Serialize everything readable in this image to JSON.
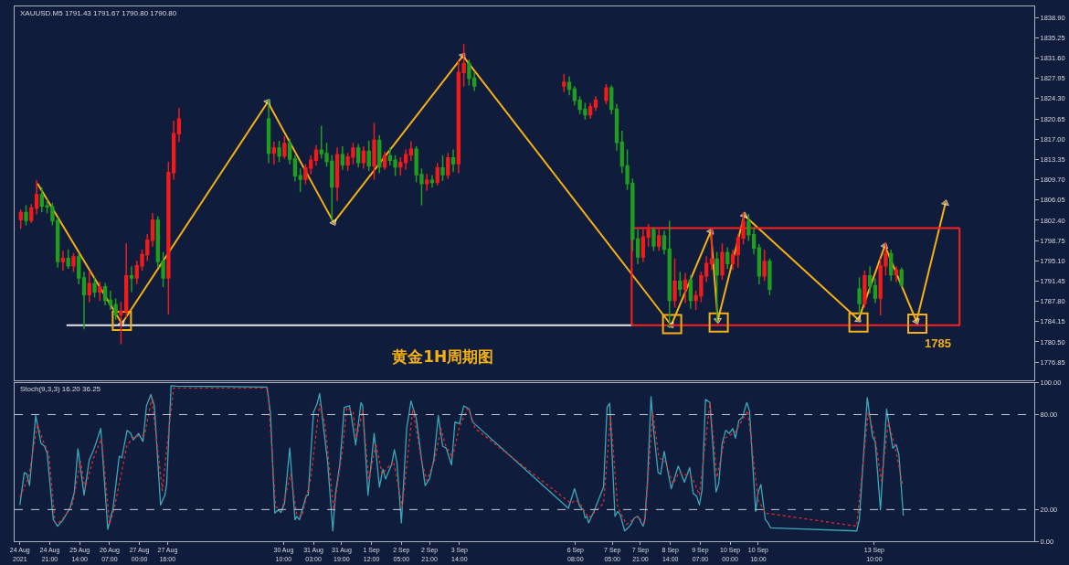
{
  "chart_data": [
    {
      "type": "candlestick",
      "title": "黄金1H周期图",
      "annotations": [
        "XAUUSD.M5 1791.43 1791.67 1790.80 1790.80",
        {
          "text": "1785",
          "x": "2021-09-14T10:30",
          "y": 1783.8
        }
      ],
      "x": [
        "2021-08-24T04:30",
        "2021-08-24T07:30",
        "2021-08-24T10:30",
        "2021-08-24T13:30",
        "2021-08-24T16:30",
        "2021-08-24T19:30",
        "2021-08-24T22:30",
        "2021-08-25T01:30",
        "2021-08-25T04:30",
        "2021-08-25T07:30",
        "2021-08-25T10:30",
        "2021-08-25T13:30",
        "2021-08-25T16:30",
        "2021-08-25T19:30",
        "2021-08-25T22:30",
        "2021-08-26T01:30",
        "2021-08-26T04:30",
        "2021-08-26T07:30",
        "2021-08-26T10:30",
        "2021-08-26T13:30",
        "2021-08-26T16:30",
        "2021-08-26T19:30",
        "2021-08-26T22:30",
        "2021-08-27T01:30",
        "2021-08-27T04:30",
        "2021-08-27T07:30",
        "2021-08-27T10:30",
        "2021-08-27T13:30",
        "2021-08-27T16:30",
        "2021-08-27T19:30",
        "2021-08-27T22:30",
        "2021-08-30T01:30",
        "2021-08-30T04:30",
        "2021-08-30T07:30",
        "2021-08-30T10:30",
        "2021-08-30T13:30",
        "2021-08-30T16:30",
        "2021-08-30T19:30",
        "2021-08-30T22:30",
        "2021-08-31T01:30",
        "2021-08-31T04:30",
        "2021-08-31T07:30",
        "2021-08-31T10:30",
        "2021-08-31T13:30",
        "2021-08-31T16:30",
        "2021-08-31T19:30",
        "2021-08-31T22:30",
        "2021-09-01T01:30",
        "2021-09-01T04:30",
        "2021-09-01T07:30",
        "2021-09-01T10:30",
        "2021-09-01T13:30",
        "2021-09-01T16:30",
        "2021-09-01T19:30",
        "2021-09-01T22:30",
        "2021-09-02T01:30",
        "2021-09-02T04:30",
        "2021-09-02T07:30",
        "2021-09-02T10:30",
        "2021-09-02T13:30",
        "2021-09-02T16:30",
        "2021-09-02T19:30",
        "2021-09-02T22:30",
        "2021-09-03T01:30",
        "2021-09-03T04:30",
        "2021-09-03T07:30",
        "2021-09-03T10:30",
        "2021-09-03T13:30",
        "2021-09-03T16:30",
        "2021-09-03T19:30",
        "2021-09-03T22:30",
        "2021-09-06T01:30",
        "2021-09-06T04:30",
        "2021-09-06T07:30",
        "2021-09-06T10:30",
        "2021-09-06T13:30",
        "2021-09-06T16:30",
        "2021-09-06T19:30",
        "2021-09-07T01:30",
        "2021-09-07T04:30",
        "2021-09-07T07:30",
        "2021-09-07T10:30",
        "2021-09-07T13:30",
        "2021-09-07T16:30",
        "2021-09-07T19:30",
        "2021-09-07T22:30",
        "2021-09-08T01:30",
        "2021-09-08T04:30",
        "2021-09-08T07:30",
        "2021-09-08T10:30",
        "2021-09-08T13:30",
        "2021-09-08T16:30",
        "2021-09-08T19:30",
        "2021-09-08T22:30",
        "2021-09-09T01:30",
        "2021-09-09T04:30",
        "2021-09-09T07:30",
        "2021-09-09T10:30",
        "2021-09-09T13:30",
        "2021-09-09T16:30",
        "2021-09-09T19:30",
        "2021-09-09T22:30",
        "2021-09-10T01:30",
        "2021-09-10T04:30",
        "2021-09-10T07:30",
        "2021-09-10T10:30",
        "2021-09-10T13:30",
        "2021-09-10T16:30",
        "2021-09-10T19:30",
        "2021-09-10T22:30",
        "2021-09-13T01:30",
        "2021-09-13T04:30",
        "2021-09-13T07:30",
        "2021-09-13T10:30",
        "2021-09-13T13:30",
        "2021-09-13T16:30",
        "2021-09-13T19:30",
        "2021-09-13T22:30",
        "2021-09-14T01:30"
      ],
      "ohlc": [
        [
          1802.5,
          1804.2,
          1801.0,
          1803.8
        ],
        [
          1803.8,
          1805.0,
          1801.6,
          1802.4
        ],
        [
          1802.4,
          1805.2,
          1802.0,
          1804.6
        ],
        [
          1804.6,
          1809.5,
          1803.6,
          1807.0
        ],
        [
          1807.0,
          1808.2,
          1804.0,
          1805.0
        ],
        [
          1805.0,
          1806.0,
          1803.8,
          1804.8
        ],
        [
          1804.8,
          1805.4,
          1801.6,
          1802.3
        ],
        [
          1802.3,
          1802.8,
          1794.0,
          1795.0
        ],
        [
          1795.0,
          1796.8,
          1793.5,
          1795.5
        ],
        [
          1795.5,
          1797.0,
          1793.8,
          1794.2
        ],
        [
          1794.2,
          1796.4,
          1793.2,
          1795.8
        ],
        [
          1795.8,
          1796.3,
          1791.0,
          1792.0
        ],
        [
          1792.0,
          1793.0,
          1782.9,
          1789.0
        ],
        [
          1789.0,
          1793.2,
          1787.8,
          1791.0
        ],
        [
          1791.0,
          1792.0,
          1788.6,
          1789.5
        ],
        [
          1789.5,
          1791.2,
          1788.0,
          1790.4
        ],
        [
          1790.4,
          1791.0,
          1787.2,
          1788.0
        ],
        [
          1788.0,
          1789.6,
          1786.4,
          1787.2
        ],
        [
          1787.2,
          1788.2,
          1784.6,
          1785.4
        ],
        [
          1785.4,
          1787.6,
          1780.2,
          1786.0
        ],
        [
          1786.0,
          1798.1,
          1785.0,
          1792.4
        ],
        [
          1792.4,
          1794.0,
          1789.6,
          1792.0
        ],
        [
          1792.0,
          1795.0,
          1791.0,
          1794.2
        ],
        [
          1794.2,
          1797.0,
          1793.4,
          1796.2
        ],
        [
          1796.2,
          1799.8,
          1795.2,
          1798.8
        ],
        [
          1798.8,
          1803.6,
          1797.8,
          1802.4
        ],
        [
          1802.4,
          1803.0,
          1794.0,
          1795.0
        ],
        [
          1795.0,
          1796.6,
          1790.5,
          1792.0
        ],
        [
          1792.0,
          1812.8,
          1785.6,
          1811.0
        ],
        [
          1811.0,
          1820.2,
          1809.8,
          1818.0
        ],
        [
          1818.0,
          1822.5,
          1816.6,
          1820.6
        ],
        [
          1820.6,
          1824.1,
          1812.8,
          1814.5
        ],
        [
          1814.5,
          1816.4,
          1812.6,
          1815.4
        ],
        [
          1815.4,
          1816.6,
          1813.0,
          1814.0
        ],
        [
          1814.0,
          1817.4,
          1813.6,
          1816.2
        ],
        [
          1816.2,
          1817.0,
          1812.6,
          1813.4
        ],
        [
          1813.4,
          1814.0,
          1809.5,
          1810.4
        ],
        [
          1810.4,
          1811.6,
          1807.6,
          1809.8
        ],
        [
          1809.8,
          1812.4,
          1809.0,
          1811.8
        ],
        [
          1811.8,
          1814.0,
          1810.8,
          1813.2
        ],
        [
          1813.2,
          1815.8,
          1812.4,
          1815.0
        ],
        [
          1815.0,
          1819.3,
          1813.6,
          1814.4
        ],
        [
          1814.4,
          1816.2,
          1812.2,
          1813.0
        ],
        [
          1813.0,
          1814.0,
          1802.4,
          1808.4
        ],
        [
          1808.4,
          1815.4,
          1806.0,
          1814.2
        ],
        [
          1814.2,
          1815.6,
          1811.6,
          1812.4
        ],
        [
          1812.4,
          1814.4,
          1811.4,
          1813.8
        ],
        [
          1813.8,
          1816.2,
          1812.6,
          1815.4
        ],
        [
          1815.4,
          1816.0,
          1812.0,
          1812.8
        ],
        [
          1812.8,
          1815.6,
          1811.8,
          1814.8
        ],
        [
          1814.8,
          1816.6,
          1811.4,
          1812.2
        ],
        [
          1812.2,
          1819.8,
          1809.8,
          1816.8
        ],
        [
          1816.8,
          1817.6,
          1811.0,
          1812.0
        ],
        [
          1812.0,
          1814.6,
          1811.6,
          1814.0
        ],
        [
          1814.0,
          1815.4,
          1812.4,
          1813.2
        ],
        [
          1813.2,
          1814.0,
          1810.5,
          1812.0
        ],
        [
          1812.0,
          1813.6,
          1810.6,
          1812.8
        ],
        [
          1812.8,
          1815.0,
          1811.6,
          1814.2
        ],
        [
          1814.2,
          1816.5,
          1813.2,
          1815.2
        ],
        [
          1815.2,
          1815.6,
          1809.4,
          1810.6
        ],
        [
          1810.6,
          1811.6,
          1805.2,
          1809.0
        ],
        [
          1809.0,
          1810.6,
          1807.8,
          1809.6
        ],
        [
          1809.6,
          1810.4,
          1808.4,
          1809.2
        ],
        [
          1809.2,
          1812.6,
          1808.8,
          1811.8
        ],
        [
          1811.8,
          1814.0,
          1809.6,
          1810.6
        ],
        [
          1810.6,
          1814.4,
          1810.0,
          1813.6
        ],
        [
          1813.6,
          1815.0,
          1811.2,
          1812.6
        ],
        [
          1812.6,
          1831.0,
          1811.0,
          1829.0
        ],
        [
          1829.0,
          1834.0,
          1826.6,
          1830.6
        ],
        [
          1830.6,
          1831.2,
          1826.8,
          1828.0
        ],
        [
          1828.0,
          1829.0,
          1825.8,
          1826.6
        ],
        [
          1826.6,
          1828.6,
          1825.6,
          1827.2
        ],
        [
          1827.2,
          1828.2,
          1825.0,
          1826.0
        ],
        [
          1826.0,
          1826.4,
          1823.2,
          1824.0
        ],
        [
          1824.0,
          1824.6,
          1821.6,
          1822.4
        ],
        [
          1822.4,
          1823.4,
          1820.6,
          1821.4
        ],
        [
          1821.4,
          1823.4,
          1820.8,
          1822.8
        ],
        [
          1822.8,
          1824.6,
          1822.2,
          1824.0
        ],
        [
          1824.0,
          1826.8,
          1823.4,
          1826.2
        ],
        [
          1826.2,
          1826.6,
          1821.6,
          1822.4
        ],
        [
          1822.4,
          1823.2,
          1815.0,
          1816.4
        ],
        [
          1816.4,
          1818.4,
          1811.0,
          1812.2
        ],
        [
          1812.2,
          1815.0,
          1808.0,
          1809.0
        ],
        [
          1809.0,
          1809.8,
          1797.0,
          1799.0
        ],
        [
          1799.0,
          1800.6,
          1794.6,
          1795.8
        ],
        [
          1795.8,
          1800.6,
          1795.0,
          1799.4
        ],
        [
          1799.4,
          1801.6,
          1797.8,
          1800.6
        ],
        [
          1800.6,
          1801.0,
          1797.0,
          1797.8
        ],
        [
          1797.8,
          1800.6,
          1797.0,
          1799.6
        ],
        [
          1799.6,
          1800.4,
          1796.4,
          1797.2
        ],
        [
          1797.2,
          1802.2,
          1783.1,
          1788.0
        ],
        [
          1788.0,
          1795.4,
          1786.8,
          1791.4
        ],
        [
          1791.4,
          1793.0,
          1788.8,
          1790.0
        ],
        [
          1790.0,
          1792.8,
          1787.6,
          1791.6
        ],
        [
          1791.6,
          1792.4,
          1786.6,
          1788.0
        ],
        [
          1788.0,
          1789.6,
          1786.4,
          1788.8
        ],
        [
          1788.8,
          1793.0,
          1787.8,
          1792.4
        ],
        [
          1792.4,
          1795.8,
          1791.4,
          1794.6
        ],
        [
          1794.6,
          1800.8,
          1793.6,
          1795.4
        ],
        [
          1795.4,
          1796.6,
          1784.4,
          1792.6
        ],
        [
          1792.6,
          1798.1,
          1791.8,
          1796.6
        ],
        [
          1796.6,
          1797.4,
          1793.8,
          1794.6
        ],
        [
          1794.6,
          1797.0,
          1793.6,
          1796.2
        ],
        [
          1796.2,
          1799.8,
          1794.0,
          1799.2
        ],
        [
          1799.2,
          1803.8,
          1798.2,
          1802.2
        ],
        [
          1802.2,
          1803.4,
          1798.8,
          1799.8
        ],
        [
          1799.8,
          1801.0,
          1796.4,
          1797.4
        ],
        [
          1797.4,
          1798.0,
          1791.0,
          1792.4
        ],
        [
          1792.4,
          1797.0,
          1791.6,
          1795.0
        ],
        [
          1795.0,
          1795.4,
          1789.0,
          1790.0
        ],
        [
          1790.0,
          1792.0,
          1785.6,
          1787.4
        ],
        [
          1787.4,
          1793.2,
          1786.8,
          1792.4
        ],
        [
          1792.4,
          1794.0,
          1789.4,
          1790.6
        ],
        [
          1790.6,
          1791.8,
          1787.6,
          1788.4
        ],
        [
          1788.4,
          1795.4,
          1785.4,
          1794.2
        ],
        [
          1794.2,
          1798.2,
          1792.6,
          1796.4
        ],
        [
          1796.4,
          1797.0,
          1791.6,
          1792.6
        ],
        [
          1792.6,
          1794.0,
          1791.4,
          1793.4
        ],
        [
          1793.4,
          1793.8,
          1790.4,
          1790.8
        ]
      ],
      "colors": [
        "#f01c1c",
        "#1f9e1f",
        "#f01c1c",
        "#f01c1c",
        "#1f9e1f",
        "#1f9e1f",
        "#1f9e1f",
        "#1f9e1f",
        "#f01c1c",
        "#1f9e1f",
        "#f01c1c",
        "#1f9e1f",
        "#1f9e1f",
        "#f01c1c",
        "#1f9e1f",
        "#f01c1c",
        "#1f9e1f",
        "#1f9e1f",
        "#1f9e1f",
        "#f01c1c",
        "#f01c1c",
        "#1f9e1f",
        "#f01c1c",
        "#f01c1c",
        "#f01c1c",
        "#f01c1c",
        "#1f9e1f",
        "#1f9e1f",
        "#f01c1c",
        "#f01c1c",
        "#f01c1c",
        "#1f9e1f",
        "#f01c1c",
        "#1f9e1f",
        "#f01c1c",
        "#1f9e1f",
        "#1f9e1f",
        "#1f9e1f",
        "#f01c1c",
        "#f01c1c",
        "#f01c1c",
        "#1f9e1f",
        "#1f9e1f",
        "#1f9e1f",
        "#f01c1c",
        "#1f9e1f",
        "#f01c1c",
        "#f01c1c",
        "#1f9e1f",
        "#f01c1c",
        "#1f9e1f",
        "#f01c1c",
        "#1f9e1f",
        "#f01c1c",
        "#1f9e1f",
        "#1f9e1f",
        "#f01c1c",
        "#f01c1c",
        "#f01c1c",
        "#1f9e1f",
        "#1f9e1f",
        "#f01c1c",
        "#1f9e1f",
        "#f01c1c",
        "#1f9e1f",
        "#f01c1c",
        "#1f9e1f",
        "#f01c1c",
        "#f01c1c",
        "#1f9e1f",
        "#1f9e1f",
        "#f01c1c",
        "#1f9e1f",
        "#1f9e1f",
        "#1f9e1f",
        "#1f9e1f",
        "#f01c1c",
        "#f01c1c",
        "#f01c1c",
        "#1f9e1f",
        "#1f9e1f",
        "#1f9e1f",
        "#1f9e1f",
        "#1f9e1f",
        "#1f9e1f",
        "#f01c1c",
        "#f01c1c",
        "#1f9e1f",
        "#f01c1c",
        "#1f9e1f",
        "#1f9e1f",
        "#f01c1c",
        "#1f9e1f",
        "#f01c1c",
        "#1f9e1f",
        "#f01c1c",
        "#f01c1c",
        "#f01c1c",
        "#f01c1c",
        "#1f9e1f",
        "#f01c1c",
        "#1f9e1f",
        "#f01c1c",
        "#f01c1c",
        "#f01c1c",
        "#1f9e1f",
        "#1f9e1f",
        "#1f9e1f",
        "#f01c1c",
        "#1f9e1f",
        "#1f9e1f",
        "#f01c1c",
        "#1f9e1f",
        "#1f9e1f",
        "#f01c1c",
        "#f01c1c",
        "#1f9e1f",
        "#f01c1c",
        "#1f9e1f"
      ],
      "series": [
        {
          "type": "line",
          "color": "#f5b014",
          "marker": "triangle",
          "x": [
            "2021-08-24T14:00",
            "2021-08-26T14:00",
            "2021-08-30T01:00",
            "2021-08-31T14:30",
            "2021-09-03T16:00",
            "2021-09-08T14:30",
            "2021-09-09T13:00",
            "2021-09-09T17:00",
            "2021-09-10T08:00",
            "2021-09-13T01:00",
            "2021-09-13T16:00",
            "2021-09-14T10:00",
            "2021-09-15T02:30"
          ],
          "values": [
            1809.0,
            1783.8,
            1823.7,
            1802.0,
            1832.0,
            1783.5,
            1800.4,
            1784.4,
            1803.3,
            1784.5,
            1797.8,
            1784.2,
            1805.5
          ]
        },
        {
          "type": "line",
          "color": "#e6e6e6",
          "x": [
            "2021-08-25T06:30",
            "2021-09-07T16:00"
          ],
          "values": [
            1783.5,
            1783.5
          ]
        },
        {
          "type": "line",
          "color": "#ff2020",
          "x": [
            "2021-09-07T16:00",
            "2021-09-15T10:30",
            "2021-09-15T10:30"
          ],
          "values": [
            1783.5,
            1783.5,
            1801.0
          ]
        },
        {
          "type": "line",
          "color": "#ff2020",
          "x": [
            "2021-09-15T10:30",
            "2021-09-07T16:00",
            "2021-09-07T16:00"
          ],
          "values": [
            1801.0,
            1801.0,
            1783.5
          ]
        },
        {
          "type": "scatter",
          "color": "#f5b014",
          "marker": "square",
          "x": [
            "2021-08-26T14:00",
            "2021-09-08T15:00",
            "2021-09-09T17:30",
            "2021-09-13T01:00",
            "2021-09-14T10:30"
          ],
          "values": [
            1784.3,
            1783.7,
            1784.0,
            1784.0,
            1783.8
          ]
        }
      ],
      "xlim": [
        "2021-08-24T01:00",
        "2021-09-17T05:00"
      ],
      "ylim": [
        1773.6,
        1840.9
      ],
      "yticks": [
        {
          "value": 1838.9,
          "label": "1838.90"
        },
        {
          "value": 1835.25,
          "label": "1835.25"
        },
        {
          "value": 1831.6,
          "label": "1831.60"
        },
        {
          "value": 1827.95,
          "label": "1827.95"
        },
        {
          "value": 1824.3,
          "label": "1824.30"
        },
        {
          "value": 1820.65,
          "label": "1820.65"
        },
        {
          "value": 1817.0,
          "label": "1817.00"
        },
        {
          "value": 1813.35,
          "label": "1813.35"
        },
        {
          "value": 1809.7,
          "label": "1809.70"
        },
        {
          "value": 1806.05,
          "label": "1806.05"
        },
        {
          "value": 1802.4,
          "label": "1802.40"
        },
        {
          "value": 1798.75,
          "label": "1798.75"
        },
        {
          "value": 1795.1,
          "label": "1795.10"
        },
        {
          "value": 1791.45,
          "label": "1791.45"
        },
        {
          "value": 1787.8,
          "label": "1787.80"
        },
        {
          "value": 1784.15,
          "label": "1784.15"
        },
        {
          "value": 1780.5,
          "label": "1780.50"
        },
        {
          "value": 1776.85,
          "label": "1776.85"
        }
      ],
      "tick_labels": "y"
    },
    {
      "type": "line",
      "annotations": [
        "Stoch(9,3,3) 16.20 36.25"
      ],
      "series": [
        {
          "color": "#3aa8b8",
          "x": [
            "2021-08-24T04:00",
            "2021-08-24T06:30",
            "2021-08-24T08:00",
            "2021-08-24T09:30",
            "2021-08-24T13:00",
            "2021-08-24T16:00",
            "2021-08-24T18:00",
            "2021-08-24T19:30",
            "2021-08-24T23:00",
            "2021-08-25T01:30",
            "2021-08-25T03:00",
            "2021-08-25T04:00",
            "2021-08-25T08:30",
            "2021-08-25T11:00",
            "2021-08-25T13:00",
            "2021-08-25T16:30",
            "2021-08-25T19:30",
            "2021-08-25T22:00",
            "2021-08-26T02:00",
            "2021-08-26T06:00",
            "2021-08-26T09:00",
            "2021-08-26T12:30",
            "2021-08-26T14:00",
            "2021-08-26T17:00",
            "2021-08-26T19:00",
            "2021-08-26T20:30",
            "2021-08-26T23:30",
            "2021-08-27T02:00",
            "2021-08-27T04:00",
            "2021-08-27T06:30",
            "2021-08-27T08:30",
            "2021-08-27T12:00",
            "2021-08-27T14:30",
            "2021-08-27T15:30",
            "2021-08-27T18:00",
            "2021-08-27T21:00",
            "2021-08-30T00:30",
            "2021-08-30T02:30",
            "2021-08-30T05:00",
            "2021-08-30T07:00",
            "2021-08-30T08:30",
            "2021-08-30T10:30",
            "2021-08-30T13:30",
            "2021-08-30T16:30",
            "2021-08-30T17:30",
            "2021-08-30T19:00",
            "2021-08-30T23:00",
            "2021-08-31T00:00",
            "2021-08-31T03:00",
            "2021-08-31T05:00",
            "2021-08-31T06:30",
            "2021-08-31T09:00",
            "2021-08-31T11:00",
            "2021-08-31T14:00",
            "2021-08-31T15:30",
            "2021-08-31T18:00",
            "2021-08-31T20:30",
            "2021-08-31T23:30",
            "2021-09-01T00:30",
            "2021-09-01T03:00",
            "2021-09-01T06:00",
            "2021-09-01T07:00",
            "2021-09-01T10:00",
            "2021-09-01T13:30",
            "2021-09-01T16:30",
            "2021-09-01T18:30",
            "2021-09-01T20:00",
            "2021-09-01T23:30",
            "2021-09-02T01:00",
            "2021-09-02T02:30",
            "2021-09-02T05:00",
            "2021-09-02T08:00",
            "2021-09-02T10:30",
            "2021-09-02T13:30",
            "2021-09-02T16:00",
            "2021-09-02T18:30",
            "2021-09-02T21:00",
            "2021-09-02T23:30",
            "2021-09-03T02:00",
            "2021-09-03T04:30",
            "2021-09-03T06:30",
            "2021-09-03T09:30",
            "2021-09-03T11:30",
            "2021-09-03T14:00",
            "2021-09-03T16:30",
            "2021-09-03T19:30",
            "2021-09-03T21:30",
            "2021-09-06T04:00",
            "2021-09-06T07:30",
            "2021-09-06T10:30",
            "2021-09-06T12:30",
            "2021-09-06T13:30",
            "2021-09-06T14:30",
            "2021-09-06T15:30",
            "2021-09-06T18:30",
            "2021-09-07T00:00",
            "2021-09-07T02:00",
            "2021-09-07T03:30",
            "2021-09-07T06:30",
            "2021-09-07T08:00",
            "2021-09-07T09:30",
            "2021-09-07T12:00",
            "2021-09-07T14:00",
            "2021-09-07T15:30",
            "2021-09-07T17:30",
            "2021-09-07T19:30",
            "2021-09-07T22:30",
            "2021-09-07T23:30",
            "2021-09-08T01:00",
            "2021-09-08T03:00",
            "2021-09-08T04:30",
            "2021-09-08T07:00",
            "2021-09-08T08:30",
            "2021-09-08T10:30",
            "2021-09-08T12:30",
            "2021-09-08T14:30",
            "2021-09-08T18:30",
            "2021-09-08T22:00",
            "2021-09-09T01:00",
            "2021-09-09T03:00",
            "2021-09-09T05:00",
            "2021-09-09T06:30",
            "2021-09-09T08:00",
            "2021-09-09T10:00",
            "2021-09-09T12:30",
            "2021-09-09T16:00",
            "2021-09-09T17:30",
            "2021-09-09T19:30",
            "2021-09-09T21:30",
            "2021-09-09T23:30",
            "2021-09-10T01:30",
            "2021-09-10T03:00",
            "2021-09-10T05:00",
            "2021-09-10T07:00",
            "2021-09-10T09:30",
            "2021-09-10T11:00",
            "2021-09-10T14:30",
            "2021-09-10T16:00",
            "2021-09-10T17:30",
            "2021-09-10T20:00",
            "2021-09-10T21:30",
            "2021-09-10T23:00",
            "2021-09-13T00:00",
            "2021-09-13T01:30",
            "2021-09-13T06:00",
            "2021-09-13T09:00",
            "2021-09-13T10:30",
            "2021-09-13T13:30",
            "2021-09-13T17:00",
            "2021-09-13T20:30",
            "2021-09-13T22:30",
            "2021-09-14T00:00",
            "2021-09-14T02:30"
          ],
          "values": [
            22.9,
            43.4,
            42.4,
            35.2,
            79.4,
            61.9,
            59.9,
            55.8,
            13.6,
            9.5,
            11.6,
            12.6,
            20.8,
            31.1,
            58.4,
            29.1,
            51.6,
            57.8,
            71.2,
            7.5,
            20.8,
            53.7,
            52.7,
            70.1,
            68.1,
            64.0,
            68.1,
            63.0,
            85.5,
            92.7,
            85.5,
            22.9,
            29.1,
            36.2,
            98.3,
            98.0,
            97.4,
            81.4,
            17.8,
            19.8,
            18.2,
            23.9,
            58.8,
            13.6,
            15.7,
            13.6,
            29.1,
            29.1,
            81.4,
            86.6,
            93.3,
            69.1,
            50.6,
            6.5,
            30.1,
            48.6,
            84.5,
            85.5,
            79.4,
            60.9,
            87.6,
            85.5,
            29.1,
            68.1,
            34.2,
            45.5,
            39.3,
            48.6,
            57.8,
            49.6,
            11.6,
            71.2,
            88.6,
            77.3,
            55.8,
            35.2,
            39.3,
            51.6,
            79.4,
            59.9,
            58.8,
            48.2,
            75.3,
            74.2,
            85.5,
            83.5,
            75.3,
            20.8,
            33.2,
            21.9,
            19.8,
            14.7,
            15.7,
            11.6,
            18.8,
            34.2,
            84.5,
            87.2,
            15.7,
            18.8,
            16.7,
            6.5,
            8.5,
            10.6,
            14.7,
            15.7,
            9.5,
            13.6,
            38.3,
            91.3,
            70.1,
            43.4,
            42.4,
            56.8,
            44.5,
            33.2,
            47.5,
            37.3,
            46.5,
            30.1,
            28.4,
            22.9,
            32.1,
            89.6,
            87.6,
            31.1,
            36.2,
            61.9,
            70.1,
            68.1,
            71.2,
            65.0,
            76.3,
            78.3,
            87.6,
            82.5,
            18.8,
            31.1,
            35.8,
            13.6,
            11.6,
            8.5,
            6.5,
            13.6,
            90.7,
            66.0,
            63.0,
            19.8,
            83.5,
            58.8,
            60.9,
            54.7,
            16.2
          ]
        },
        {
          "color": "#e02b2b",
          "line_style": "dotted",
          "x": [
            "2021-08-24T04:00",
            "2021-08-24T09:00",
            "2021-08-24T14:00",
            "2021-08-24T17:00",
            "2021-08-24T20:30",
            "2021-08-25T00:00",
            "2021-08-25T02:00",
            "2021-08-25T05:30",
            "2021-08-25T10:00",
            "2021-08-25T14:30",
            "2021-08-25T17:00",
            "2021-08-25T22:00",
            "2021-08-26T02:30",
            "2021-08-26T07:00",
            "2021-08-26T09:30",
            "2021-08-26T17:00",
            "2021-08-26T21:00",
            "2021-08-27T03:00",
            "2021-08-27T07:00",
            "2021-08-27T13:00",
            "2021-08-27T17:00",
            "2021-08-27T19:30",
            "2021-08-30T01:00",
            "2021-08-30T05:30",
            "2021-08-30T09:00",
            "2021-08-30T14:00",
            "2021-08-30T17:30",
            "2021-08-30T20:30",
            "2021-08-31T01:30",
            "2021-08-31T06:30",
            "2021-08-31T09:30",
            "2021-08-31T14:30",
            "2021-08-31T19:30",
            "2021-08-31T22:00",
            "2021-09-01T01:30",
            "2021-09-01T03:30",
            "2021-09-01T07:00",
            "2021-09-01T10:30",
            "2021-09-01T14:30",
            "2021-09-01T18:00",
            "2021-09-02T00:30",
            "2021-09-02T05:30",
            "2021-09-02T11:30",
            "2021-09-02T16:30",
            "2021-09-02T19:30",
            "2021-09-03T00:00",
            "2021-09-03T03:30",
            "2021-09-03T06:00",
            "2021-09-03T10:00",
            "2021-09-03T14:00",
            "2021-09-03T19:00",
            "2021-09-03T23:00",
            "2021-09-06T05:30",
            "2021-09-06T08:00",
            "2021-09-06T10:30",
            "2021-09-06T15:30",
            "2021-09-07T00:00",
            "2021-09-07T04:00",
            "2021-09-07T08:00",
            "2021-09-07T13:00",
            "2021-09-07T19:00",
            "2021-09-07T23:30",
            "2021-09-08T04:00",
            "2021-09-08T07:30",
            "2021-09-08T11:00",
            "2021-09-08T15:30",
            "2021-09-08T19:00",
            "2021-09-09T02:30",
            "2021-09-09T06:30",
            "2021-09-09T12:30",
            "2021-09-09T16:30",
            "2021-09-09T21:00",
            "2021-09-10T03:00",
            "2021-09-10T10:00",
            "2021-09-10T16:00",
            "2021-09-10T20:00",
            "2021-09-13T00:00",
            "2021-09-13T06:30",
            "2021-09-13T10:30",
            "2021-09-13T14:00",
            "2021-09-13T18:00",
            "2021-09-13T22:00",
            "2021-09-14T02:00"
          ],
          "values": [
            28.0,
            40.3,
            74.2,
            64.0,
            54.7,
            11.6,
            11.6,
            15.7,
            23.9,
            50.6,
            33.2,
            52.7,
            65.0,
            10.6,
            19.8,
            60.9,
            66.0,
            67.1,
            90.7,
            32.1,
            73.2,
            96.8,
            96.8,
            21.9,
            19.8,
            42.4,
            16.7,
            15.7,
            40.3,
            86.6,
            74.2,
            19.8,
            57.8,
            84.5,
            81.4,
            65.0,
            82.5,
            38.3,
            61.9,
            42.4,
            50.6,
            21.9,
            83.5,
            50.6,
            38.3,
            51.6,
            71.2,
            60.9,
            52.7,
            72.2,
            84.5,
            71.2,
            23.9,
            26.0,
            23.9,
            14.7,
            23.9,
            79.4,
            21.9,
            10.6,
            15.7,
            11.6,
            81.4,
            52.7,
            50.6,
            36.2,
            43.4,
            40.3,
            29.1,
            87.6,
            40.3,
            65.0,
            69.1,
            82.5,
            26.0,
            17.8,
            9.5,
            81.4,
            65.0,
            38.3,
            75.3,
            58.8,
            36.2
          ]
        }
      ],
      "ref_lines": [
        {
          "axis": "y",
          "value": 80,
          "line_style": "dashed",
          "color": "#c9ccd4"
        },
        {
          "axis": "y",
          "value": 20,
          "line_style": "dashed",
          "color": "#c9ccd4"
        }
      ],
      "xlim": [
        "2021-08-24T01:00",
        "2021-09-17T05:00"
      ],
      "xticks": [
        {
          "value": "2021-08-24T04:00",
          "label": "24 Aug 2021"
        },
        {
          "value": "2021-08-24T21:00",
          "label": "24 Aug 21:00"
        },
        {
          "value": "2021-08-25T14:00",
          "label": "25 Aug 14:00"
        },
        {
          "value": "2021-08-26T07:00",
          "label": "26 Aug 07:00"
        },
        {
          "value": "2021-08-27T00:00",
          "label": "27 Aug 00:00"
        },
        {
          "value": "2021-08-27T16:00",
          "label": "27 Aug 16:00"
        },
        {
          "value": "2021-08-30T10:00",
          "label": "30 Aug 10:00"
        },
        {
          "value": "2021-08-31T03:00",
          "label": "31 Aug 03:00"
        },
        {
          "value": "2021-08-31T19:00",
          "label": "31 Aug 19:00"
        },
        {
          "value": "2021-09-01T12:00",
          "label": "1 Sep 12:00"
        },
        {
          "value": "2021-09-02T05:00",
          "label": "2 Sep 05:00"
        },
        {
          "value": "2021-09-02T21:00",
          "label": "2 Sep 21:00"
        },
        {
          "value": "2021-09-03T14:00",
          "label": "3 Sep 14:00"
        },
        {
          "value": "2021-09-06T08:00",
          "label": "6 Sep 08:00"
        },
        {
          "value": "2021-09-07T05:00",
          "label": "7 Sep 05:00"
        },
        {
          "value": "2021-09-07T21:00",
          "label": "7 Sep 21:00"
        },
        {
          "value": "2021-09-08T14:00",
          "label": "8 Sep 14:00"
        },
        {
          "value": "2021-09-09T07:00",
          "label": "9 Sep 07:00"
        },
        {
          "value": "2021-09-10T00:00",
          "label": "10 Sep 00:00"
        },
        {
          "value": "2021-09-10T16:00",
          "label": "10 Sep 16:00"
        },
        {
          "value": "2021-09-13T10:00",
          "label": "13 Sep 10:00"
        }
      ],
      "ylim": [
        0,
        100
      ],
      "yticks": [
        {
          "value": 0,
          "label": "0.00"
        },
        {
          "value": 20,
          "label": "20.00"
        },
        {
          "value": 80,
          "label": "80.00"
        },
        {
          "value": 100,
          "label": "100.00"
        }
      ]
    }
  ]
}
